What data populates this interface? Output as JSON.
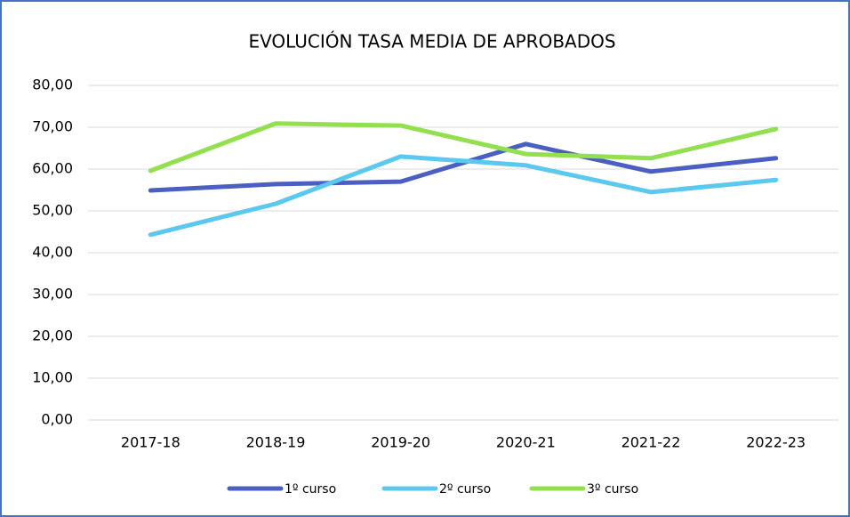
{
  "chart_data": {
    "type": "line",
    "title": "EVOLUCIÓN TASA MEDIA DE APROBADOS",
    "categories": [
      "2017-18",
      "2018-19",
      "2019-20",
      "2020-21",
      "2021-22",
      "2022-23"
    ],
    "series": [
      {
        "name": "1º curso",
        "color": "#4a5fc1",
        "values": [
          54.9,
          56.4,
          57.0,
          66.0,
          59.4,
          62.6
        ]
      },
      {
        "name": "2º curso",
        "color": "#5bc8ef",
        "values": [
          44.3,
          51.7,
          63.0,
          60.9,
          54.5,
          57.4
        ]
      },
      {
        "name": "3º curso",
        "color": "#92e04e",
        "values": [
          59.6,
          70.9,
          70.4,
          63.6,
          62.6,
          69.6
        ]
      }
    ],
    "ylim": [
      0,
      80
    ],
    "yticks": [
      {
        "value": 0,
        "label": "0,00"
      },
      {
        "value": 10,
        "label": "10,00"
      },
      {
        "value": 20,
        "label": "20,00"
      },
      {
        "value": 30,
        "label": "30,00"
      },
      {
        "value": 40,
        "label": "40,00"
      },
      {
        "value": 50,
        "label": "50,00"
      },
      {
        "value": 60,
        "label": "60,00"
      },
      {
        "value": 70,
        "label": "70,00"
      },
      {
        "value": 80,
        "label": "80,00"
      }
    ],
    "grid": true,
    "legend": "bottom"
  }
}
